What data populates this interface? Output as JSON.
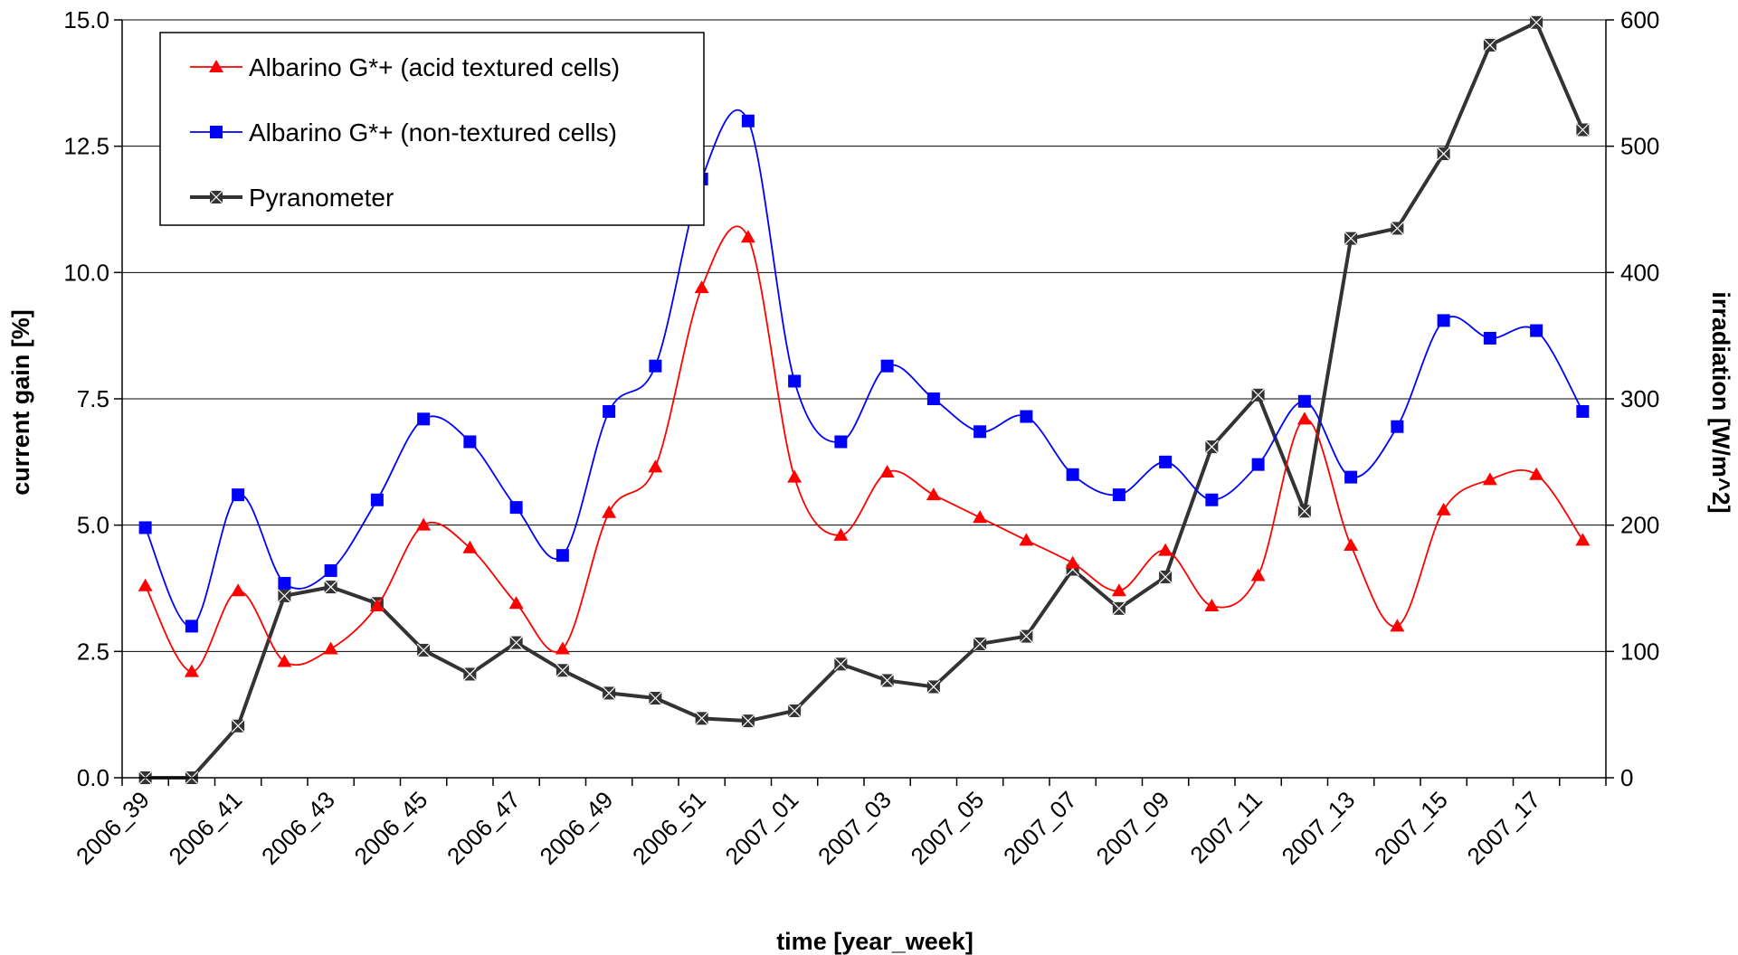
{
  "chart_data": {
    "type": "line",
    "title": "",
    "xlabel": "time [year_week]",
    "ylabel": "current gain [%]",
    "y2label": "irradiation [W/m^2]",
    "ylim": [
      0,
      15
    ],
    "y2lim": [
      0,
      600
    ],
    "yticks": [
      "0.0",
      "2.5",
      "5.0",
      "7.5",
      "10.0",
      "12.5",
      "15.0"
    ],
    "y2ticks": [
      "0",
      "100",
      "200",
      "300",
      "400",
      "500",
      "600"
    ],
    "grid": "horizontal",
    "legend_position": "top-left",
    "categories": [
      "2006_39",
      "2006_40",
      "2006_41",
      "2006_42",
      "2006_43",
      "2006_44",
      "2006_45",
      "2006_46",
      "2006_47",
      "2006_48",
      "2006_49",
      "2006_50",
      "2006_51",
      "2006_52",
      "2007_01",
      "2007_02",
      "2007_03",
      "2007_04",
      "2007_05",
      "2007_06",
      "2007_07",
      "2007_08",
      "2007_09",
      "2007_10",
      "2007_11",
      "2007_12",
      "2007_13",
      "2007_14",
      "2007_15",
      "2007_16",
      "2007_17",
      "2007_18"
    ],
    "xtick_labels": [
      "2006_39",
      "2006_41",
      "2006_43",
      "2006_45",
      "2006_47",
      "2006_49",
      "2006_51",
      "2007_01",
      "2007_03",
      "2007_05",
      "2007_07",
      "2007_09",
      "2007_11",
      "2007_13",
      "2007_15",
      "2007_17"
    ],
    "series": [
      {
        "name": "Albarino G*+ (acid textured cells)",
        "axis": "left",
        "color": "#ff0000",
        "marker": "triangle",
        "smooth": true,
        "values": [
          3.8,
          2.1,
          3.7,
          2.3,
          2.55,
          3.4,
          5.0,
          4.55,
          3.45,
          2.55,
          5.25,
          6.15,
          9.7,
          10.7,
          5.95,
          4.8,
          6.05,
          5.6,
          5.15,
          4.7,
          4.25,
          3.7,
          4.5,
          3.4,
          4.0,
          7.1,
          4.6,
          3.0,
          5.3,
          5.9,
          6.0,
          4.7
        ]
      },
      {
        "name": "Albarino G*+ (non-textured cells)",
        "axis": "left",
        "color": "#0000ff",
        "marker": "square",
        "smooth": true,
        "values": [
          4.95,
          3.0,
          5.6,
          3.85,
          4.1,
          5.5,
          7.1,
          6.65,
          5.35,
          4.4,
          7.25,
          8.15,
          11.85,
          13.0,
          7.85,
          6.65,
          8.15,
          7.5,
          6.85,
          7.15,
          6.0,
          5.6,
          6.25,
          5.5,
          6.2,
          7.45,
          5.95,
          6.95,
          9.05,
          8.7,
          8.85,
          7.25
        ]
      },
      {
        "name": "Pyranometer",
        "axis": "right",
        "color": "#333333",
        "marker": "asterisk-square",
        "smooth": false,
        "values": [
          0,
          0,
          41,
          144,
          151,
          138,
          101,
          82,
          107,
          85,
          67,
          63,
          47,
          45,
          53,
          90,
          77,
          72,
          106,
          112,
          165,
          134,
          159,
          262,
          303,
          211,
          427,
          435,
          494,
          580,
          598,
          513
        ]
      }
    ]
  }
}
